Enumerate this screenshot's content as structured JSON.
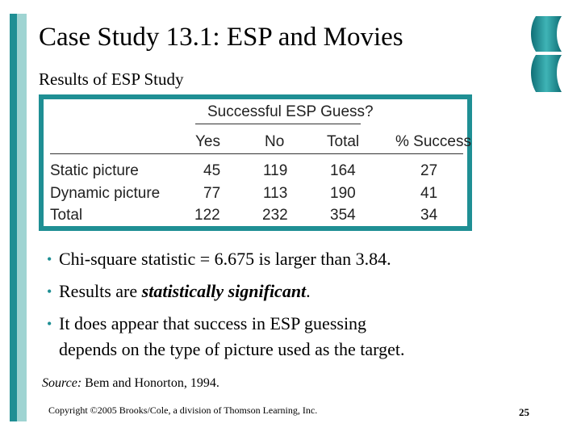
{
  "title": "Case Study 13.1:  ESP and Movies",
  "subtitle": "Results of ESP Study",
  "table": {
    "group_header": "Successful ESP Guess?",
    "columns": [
      "Yes",
      "No",
      "Total",
      "% Success"
    ],
    "rows": [
      {
        "label": "Static picture",
        "values": [
          "45",
          "119",
          "164",
          "27"
        ]
      },
      {
        "label": "Dynamic picture",
        "values": [
          "77",
          "113",
          "190",
          "41"
        ]
      },
      {
        "label": "Total",
        "values": [
          "122",
          "232",
          "354",
          "34"
        ]
      }
    ]
  },
  "bullets": {
    "b1": "Chi-square statistic = 6.675 is larger than 3.84.",
    "b2_pre": "Results are ",
    "b2_emph": "statistically significant",
    "b2_post": ".",
    "b3_line1": "It does appear that success in ESP guessing",
    "b3_line2": "depends on the type of picture used as the target."
  },
  "source": {
    "label": "Source:",
    "text": " Bem and Honorton, 1994."
  },
  "copyright": "Copyright ©2005 Brooks/Cole, a division of Thomson Learning, Inc.",
  "page_number": "25",
  "colors": {
    "accent": "#1f8f94",
    "accent_light": "#9fd4d2"
  }
}
